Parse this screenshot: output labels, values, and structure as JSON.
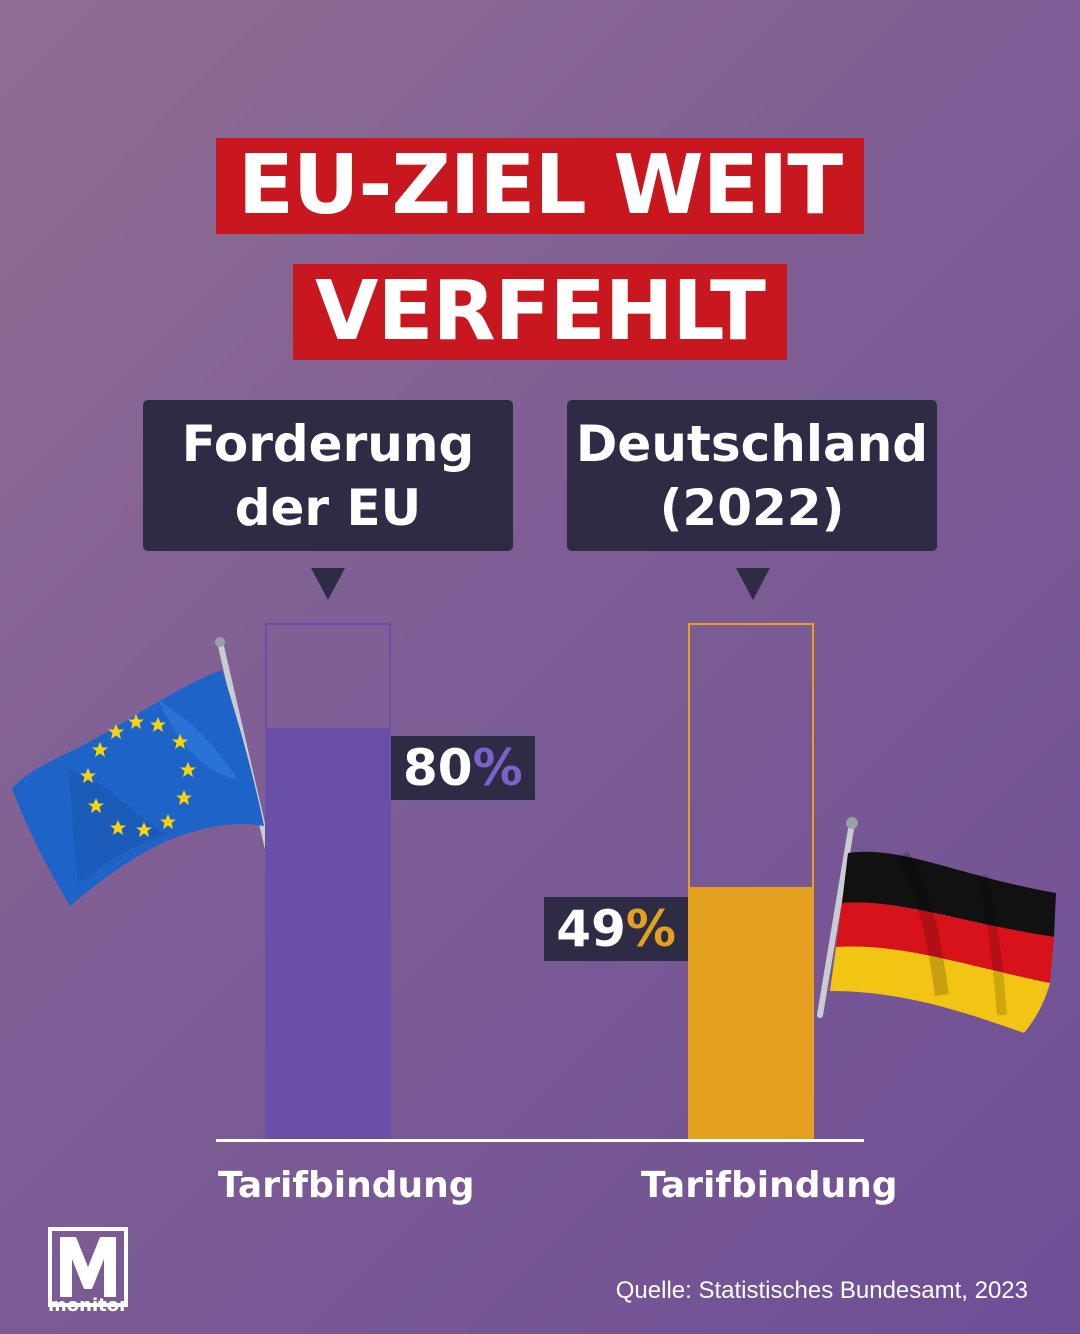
{
  "title": [
    "EU-ZIEL WEIT",
    "VERFEHLT"
  ],
  "colors": {
    "title_bg": "#c8171f",
    "label_bg": "#2e2b44",
    "eu_bar": "#6a4fa8",
    "de_bar": "#e4a11f"
  },
  "icons": [
    "eu-flag-icon",
    "german-flag-icon",
    "monitor-logo-icon"
  ],
  "chart_data": {
    "type": "bar",
    "ylim": [
      0,
      100
    ],
    "bars": [
      {
        "header": [
          "Forderung",
          "der EU"
        ],
        "category": "Tarifbindung",
        "value": 80,
        "value_number": "80",
        "unit": "%"
      },
      {
        "header": [
          "Deutschland",
          "(2022)"
        ],
        "category": "Tarifbindung",
        "value": 49,
        "value_number": "49",
        "unit": "%"
      }
    ]
  },
  "source": "Quelle: Statistisches Bundesamt, 2023",
  "logo": {
    "text": "monitor"
  }
}
